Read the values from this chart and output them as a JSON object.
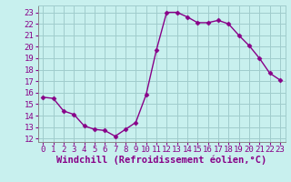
{
  "x": [
    0,
    1,
    2,
    3,
    4,
    5,
    6,
    7,
    8,
    9,
    10,
    11,
    12,
    13,
    14,
    15,
    16,
    17,
    18,
    19,
    20,
    21,
    22,
    23
  ],
  "y": [
    15.6,
    15.5,
    14.4,
    14.1,
    13.1,
    12.8,
    12.7,
    12.2,
    12.8,
    13.4,
    15.8,
    19.7,
    23.0,
    23.0,
    22.6,
    22.1,
    22.1,
    22.3,
    22.0,
    21.0,
    20.1,
    19.0,
    17.7,
    17.1
  ],
  "line_color": "#880088",
  "marker": "D",
  "markersize": 2.5,
  "linewidth": 1.0,
  "background_color": "#c8f0ee",
  "grid_color": "#a0cccc",
  "xlabel": "Windchill (Refroidissement éolien,°C)",
  "xlabel_color": "#880088",
  "xlabel_fontsize": 7.5,
  "ylim": [
    11.7,
    23.6
  ],
  "xlim": [
    -0.5,
    23.5
  ],
  "tick_color": "#880088",
  "tick_fontsize": 6.5,
  "yticks": [
    12,
    13,
    14,
    15,
    16,
    17,
    18,
    19,
    20,
    21,
    22,
    23
  ],
  "xticks": [
    0,
    1,
    2,
    3,
    4,
    5,
    6,
    7,
    8,
    9,
    10,
    11,
    12,
    13,
    14,
    15,
    16,
    17,
    18,
    19,
    20,
    21,
    22,
    23
  ]
}
